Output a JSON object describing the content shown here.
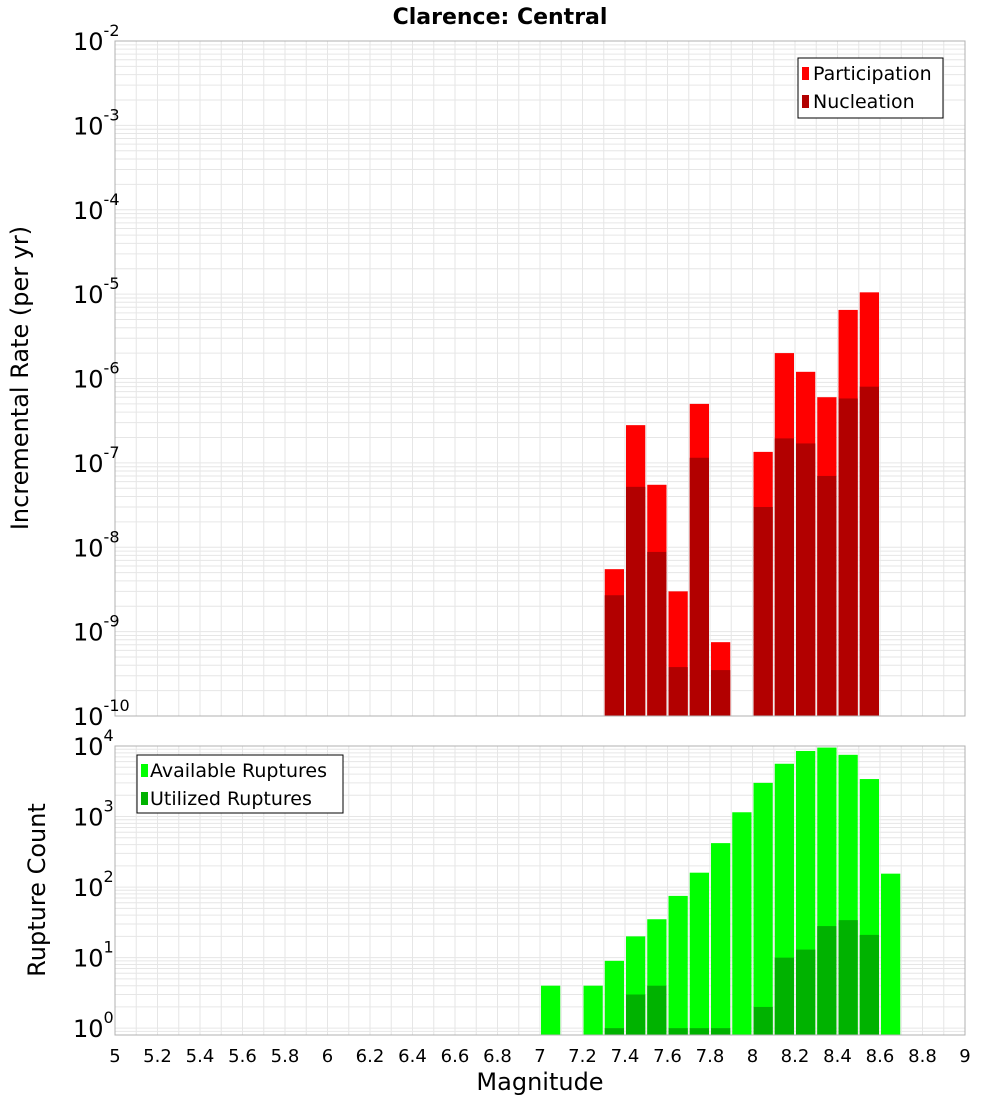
{
  "title": "Clarence: Central",
  "colors": {
    "participation": "#ff0000",
    "nucleation": "#b20000",
    "available": "#00ff00",
    "utilized": "#00b200",
    "grid": "#e6e6e6",
    "frame": "#b0b0b0"
  },
  "chart_data": [
    {
      "type": "bar",
      "panel": "top",
      "ylabel": "Incremental Rate (per yr)",
      "yscale": "log",
      "ylim": [
        1e-10,
        0.01
      ],
      "xlim": [
        5,
        9
      ],
      "legend": {
        "placement": "top-right",
        "entries": [
          "Participation",
          "Nucleation"
        ]
      },
      "bin_width": 0.1,
      "series": [
        {
          "name": "Participation",
          "x": [
            7.35,
            7.45,
            7.55,
            7.65,
            7.75,
            7.85,
            8.05,
            8.15,
            8.25,
            8.35,
            8.45,
            8.55
          ],
          "values": [
            5.5e-09,
            2.8e-07,
            5.5e-08,
            3e-09,
            5e-07,
            7.5e-10,
            1.35e-07,
            2e-06,
            1.2e-06,
            6e-07,
            6.5e-06,
            1.05e-05
          ]
        },
        {
          "name": "Nucleation",
          "x": [
            7.35,
            7.45,
            7.55,
            7.65,
            7.75,
            7.85,
            8.05,
            8.15,
            8.25,
            8.35,
            8.45,
            8.55
          ],
          "values": [
            2.7e-09,
            5.2e-08,
            8.8e-09,
            3.8e-10,
            1.15e-07,
            3.5e-10,
            3e-08,
            1.95e-07,
            1.7e-07,
            7e-08,
            5.8e-07,
            8e-07
          ]
        }
      ]
    },
    {
      "type": "bar",
      "panel": "bottom",
      "ylabel": "Rupture Count",
      "xlabel": "Magnitude",
      "yscale": "log",
      "ylim": [
        0.8,
        10000
      ],
      "xlim": [
        5,
        9
      ],
      "legend": {
        "placement": "top-left",
        "entries": [
          "Available Ruptures",
          "Utilized Ruptures"
        ]
      },
      "bin_width": 0.1,
      "series": [
        {
          "name": "Available Ruptures",
          "x": [
            7.05,
            7.25,
            7.35,
            7.45,
            7.55,
            7.65,
            7.75,
            7.85,
            7.95,
            8.05,
            8.15,
            8.25,
            8.35,
            8.45,
            8.55,
            8.65
          ],
          "values": [
            4,
            4,
            9,
            20,
            35,
            75,
            160,
            420,
            1150,
            3000,
            5600,
            8500,
            9500,
            7500,
            3400,
            155
          ]
        },
        {
          "name": "Utilized Ruptures",
          "x": [
            7.35,
            7.45,
            7.55,
            7.65,
            7.75,
            7.85,
            8.05,
            8.15,
            8.25,
            8.35,
            8.45,
            8.55
          ],
          "values": [
            1,
            3,
            4,
            1,
            1,
            1,
            2,
            10,
            13,
            28,
            34,
            21
          ]
        }
      ]
    }
  ],
  "x_ticks": [
    "5",
    "5.2",
    "5.4",
    "5.6",
    "5.8",
    "6",
    "6.2",
    "6.4",
    "6.6",
    "6.8",
    "7",
    "7.2",
    "7.4",
    "7.6",
    "7.8",
    "8",
    "8.2",
    "8.4",
    "8.6",
    "8.8",
    "9"
  ],
  "top_y_ticks": [
    {
      "base": "10",
      "exp": "-10",
      "value": 1e-10
    },
    {
      "base": "10",
      "exp": "-9",
      "value": 1e-09
    },
    {
      "base": "10",
      "exp": "-8",
      "value": 1e-08
    },
    {
      "base": "10",
      "exp": "-7",
      "value": 1e-07
    },
    {
      "base": "10",
      "exp": "-6",
      "value": 1e-06
    },
    {
      "base": "10",
      "exp": "-5",
      "value": 1e-05
    },
    {
      "base": "10",
      "exp": "-4",
      "value": 0.0001
    },
    {
      "base": "10",
      "exp": "-3",
      "value": 0.001
    },
    {
      "base": "10",
      "exp": "-2",
      "value": 0.01
    }
  ],
  "bottom_y_ticks": [
    {
      "base": "10",
      "exp": "0",
      "value": 1
    },
    {
      "base": "10",
      "exp": "1",
      "value": 10
    },
    {
      "base": "10",
      "exp": "2",
      "value": 100
    },
    {
      "base": "10",
      "exp": "3",
      "value": 1000
    },
    {
      "base": "10",
      "exp": "4",
      "value": 10000
    }
  ]
}
